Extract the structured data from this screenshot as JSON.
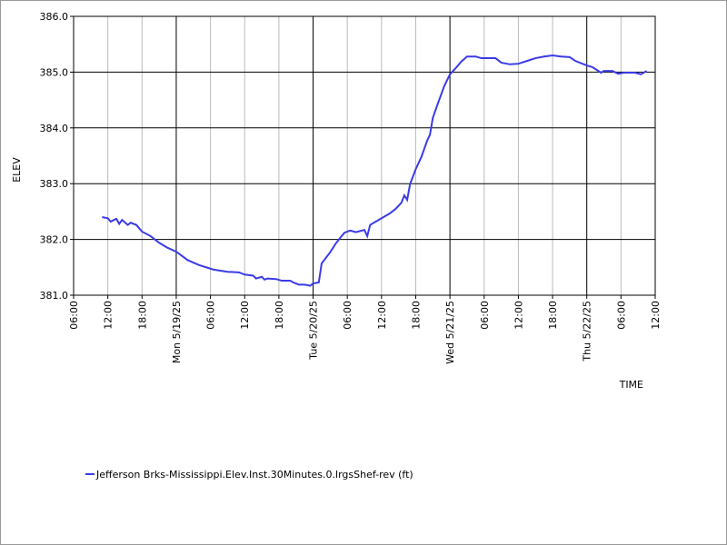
{
  "chart_data": {
    "type": "line",
    "xlabel": "TIME",
    "ylabel": "ELEV",
    "grid": true,
    "legend": "bottom-left",
    "xlim": [
      "2025-05-18T06:00",
      "2025-05-22T12:00"
    ],
    "ylim": [
      381,
      386
    ],
    "yticks": [
      {
        "value": 381,
        "label": "381.0"
      },
      {
        "value": 382,
        "label": "382.0"
      },
      {
        "value": 383,
        "label": "383.0"
      },
      {
        "value": 384,
        "label": "384.0"
      },
      {
        "value": 385,
        "label": "385.0"
      },
      {
        "value": 386,
        "label": "386.0"
      }
    ],
    "xticks": [
      {
        "value": "2025-05-18T06:00",
        "label": "06:00"
      },
      {
        "value": "2025-05-18T12:00",
        "label": "12:00"
      },
      {
        "value": "2025-05-18T18:00",
        "label": "18:00"
      },
      {
        "value": "2025-05-19T00:00",
        "label": "Mon 5/19/25"
      },
      {
        "value": "2025-05-19T06:00",
        "label": "06:00"
      },
      {
        "value": "2025-05-19T12:00",
        "label": "12:00"
      },
      {
        "value": "2025-05-19T18:00",
        "label": "18:00"
      },
      {
        "value": "2025-05-20T00:00",
        "label": "Tue 5/20/25"
      },
      {
        "value": "2025-05-20T06:00",
        "label": "06:00"
      },
      {
        "value": "2025-05-20T12:00",
        "label": "12:00"
      },
      {
        "value": "2025-05-20T18:00",
        "label": "18:00"
      },
      {
        "value": "2025-05-21T00:00",
        "label": "Wed 5/21/25"
      },
      {
        "value": "2025-05-21T06:00",
        "label": "06:00"
      },
      {
        "value": "2025-05-21T12:00",
        "label": "12:00"
      },
      {
        "value": "2025-05-21T18:00",
        "label": "18:00"
      },
      {
        "value": "2025-05-22T00:00",
        "label": "Thu 5/22/25"
      },
      {
        "value": "2025-05-22T06:00",
        "label": "06:00"
      },
      {
        "value": "2025-05-22T12:00",
        "label": "12:00"
      }
    ],
    "x": [
      "2025-05-18T11:00",
      "2025-05-18T12:00",
      "2025-05-18T12:30",
      "2025-05-18T13:30",
      "2025-05-18T14:00",
      "2025-05-18T14:30",
      "2025-05-18T15:30",
      "2025-05-18T16:00",
      "2025-05-18T17:00",
      "2025-05-18T18:00",
      "2025-05-18T19:30",
      "2025-05-18T21:00",
      "2025-05-18T22:30",
      "2025-05-19T00:00",
      "2025-05-19T02:00",
      "2025-05-19T04:00",
      "2025-05-19T06:30",
      "2025-05-19T09:00",
      "2025-05-19T11:00",
      "2025-05-19T12:00",
      "2025-05-19T13:30",
      "2025-05-19T14:00",
      "2025-05-19T15:00",
      "2025-05-19T15:30",
      "2025-05-19T16:00",
      "2025-05-19T17:30",
      "2025-05-19T18:30",
      "2025-05-19T20:00",
      "2025-05-19T20:30",
      "2025-05-19T21:00",
      "2025-05-19T21:30",
      "2025-05-19T22:30",
      "2025-05-19T23:30",
      "2025-05-20T00:00",
      "2025-05-20T01:00",
      "2025-05-20T01:30",
      "2025-05-20T03:00",
      "2025-05-20T04:00",
      "2025-05-20T05:00",
      "2025-05-20T05:30",
      "2025-05-20T06:30",
      "2025-05-20T07:30",
      "2025-05-20T09:00",
      "2025-05-20T09:30",
      "2025-05-20T10:00",
      "2025-05-20T11:30",
      "2025-05-20T13:30",
      "2025-05-20T14:30",
      "2025-05-20T15:30",
      "2025-05-20T16:00",
      "2025-05-20T16:30",
      "2025-05-20T17:00",
      "2025-05-20T18:00",
      "2025-05-20T19:00",
      "2025-05-20T20:00",
      "2025-05-20T20:30",
      "2025-05-20T21:00",
      "2025-05-20T22:00",
      "2025-05-20T23:00",
      "2025-05-21T00:00",
      "2025-05-21T01:00",
      "2025-05-21T02:00",
      "2025-05-21T03:00",
      "2025-05-21T04:30",
      "2025-05-21T05:30",
      "2025-05-21T08:00",
      "2025-05-21T09:00",
      "2025-05-21T10:30",
      "2025-05-21T12:00",
      "2025-05-21T13:30",
      "2025-05-21T15:00",
      "2025-05-21T16:30",
      "2025-05-21T18:00",
      "2025-05-21T19:30",
      "2025-05-21T21:00",
      "2025-05-21T22:00",
      "2025-05-22T00:00",
      "2025-05-22T01:00",
      "2025-05-22T02:30",
      "2025-05-22T03:00",
      "2025-05-22T04:30",
      "2025-05-22T05:30",
      "2025-05-22T06:30",
      "2025-05-22T08:30",
      "2025-05-22T09:30",
      "2025-05-22T10:30"
    ],
    "series": [
      {
        "name": "Jefferson Brks-Mississippi.Elev.Inst.30Minutes.0.lrgsShef-rev (ft)",
        "color": "#3b3be6",
        "values": [
          382.4,
          382.38,
          382.32,
          382.37,
          382.28,
          382.35,
          382.26,
          382.3,
          382.26,
          382.14,
          382.06,
          381.94,
          381.85,
          381.78,
          381.63,
          381.54,
          381.46,
          381.42,
          381.41,
          381.37,
          381.35,
          381.3,
          381.33,
          381.28,
          381.3,
          381.29,
          381.26,
          381.26,
          381.23,
          381.21,
          381.19,
          381.19,
          381.17,
          381.21,
          381.23,
          381.57,
          381.77,
          381.93,
          382.06,
          382.12,
          382.16,
          382.13,
          382.17,
          382.06,
          382.26,
          382.35,
          382.47,
          382.55,
          382.66,
          382.79,
          382.71,
          382.99,
          383.26,
          383.48,
          383.77,
          383.88,
          384.18,
          384.47,
          384.75,
          384.96,
          385.07,
          385.19,
          385.28,
          385.28,
          385.25,
          385.25,
          385.17,
          385.14,
          385.15,
          385.2,
          385.25,
          385.28,
          385.3,
          385.28,
          385.27,
          385.2,
          385.12,
          385.09,
          384.99,
          385.02,
          385.02,
          384.97,
          384.99,
          384.99,
          384.96,
          385.02
        ]
      }
    ]
  }
}
